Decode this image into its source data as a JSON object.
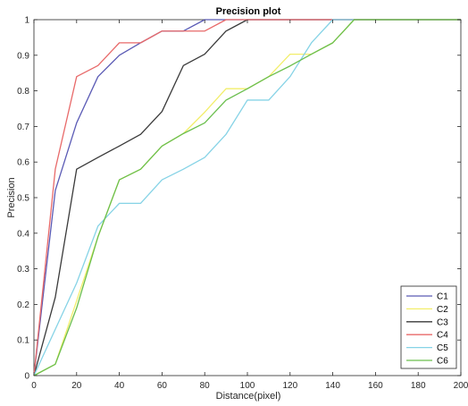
{
  "chart_data": {
    "type": "line",
    "title": "Precision plot",
    "xlabel": "Distance(pixel)",
    "ylabel": "Precision",
    "xlim": [
      0,
      200
    ],
    "ylim": [
      0,
      1
    ],
    "xticks": [
      0,
      20,
      40,
      60,
      80,
      100,
      120,
      140,
      160,
      180,
      200
    ],
    "yticks": [
      0,
      0.1,
      0.2,
      0.3,
      0.4,
      0.5,
      0.6,
      0.7,
      0.8,
      0.9,
      1
    ],
    "grid": false,
    "legend_position": "bottom-right",
    "x": [
      0,
      10,
      20,
      30,
      40,
      50,
      60,
      70,
      80,
      90,
      100,
      110,
      120,
      130,
      140,
      150,
      160,
      170,
      180,
      190,
      200
    ],
    "series": [
      {
        "name": "C1",
        "color": "#5b5bb5",
        "values": [
          0,
          0.52,
          0.71,
          0.84,
          0.9,
          0.935,
          0.968,
          0.968,
          1.0,
          1.0,
          1.0,
          1.0,
          1.0,
          1.0,
          1.0,
          1.0,
          1.0,
          1.0,
          1.0,
          1.0,
          1.0
        ]
      },
      {
        "name": "C2",
        "color": "#f2ee6a",
        "values": [
          0,
          0.032,
          0.21,
          0.39,
          0.55,
          0.58,
          0.645,
          0.68,
          0.74,
          0.806,
          0.806,
          0.84,
          0.903,
          0.903,
          0.935,
          1.0,
          1.0,
          1.0,
          1.0,
          1.0,
          1.0
        ]
      },
      {
        "name": "C3",
        "color": "#3a3a3a",
        "values": [
          0,
          0.22,
          0.58,
          0.613,
          0.645,
          0.678,
          0.742,
          0.871,
          0.903,
          0.968,
          1.0,
          1.0,
          1.0,
          1.0,
          1.0,
          1.0,
          1.0,
          1.0,
          1.0,
          1.0,
          1.0
        ]
      },
      {
        "name": "C4",
        "color": "#e86a6a",
        "values": [
          0,
          0.58,
          0.84,
          0.871,
          0.935,
          0.935,
          0.968,
          0.968,
          0.968,
          1.0,
          1.0,
          1.0,
          1.0,
          1.0,
          1.0,
          1.0,
          1.0,
          1.0,
          1.0,
          1.0,
          1.0
        ]
      },
      {
        "name": "C5",
        "color": "#86d3e6",
        "values": [
          0,
          0.13,
          0.26,
          0.42,
          0.484,
          0.484,
          0.55,
          0.58,
          0.613,
          0.678,
          0.774,
          0.774,
          0.84,
          0.935,
          1.0,
          1.0,
          1.0,
          1.0,
          1.0,
          1.0,
          1.0
        ]
      },
      {
        "name": "C6",
        "color": "#6bbf4e",
        "values": [
          0,
          0.032,
          0.19,
          0.39,
          0.55,
          0.58,
          0.645,
          0.68,
          0.71,
          0.774,
          0.806,
          0.84,
          0.87,
          0.903,
          0.935,
          1.0,
          1.0,
          1.0,
          1.0,
          1.0,
          1.0
        ]
      }
    ]
  }
}
